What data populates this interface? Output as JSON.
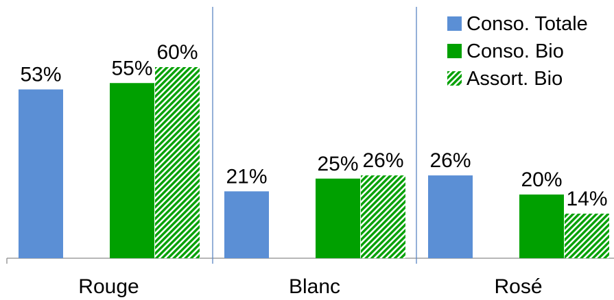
{
  "chart_data": {
    "type": "bar",
    "categories": [
      "Rouge",
      "Blanc",
      "Rosé"
    ],
    "series": [
      {
        "name": "Conso. Totale",
        "values": [
          53,
          21,
          26
        ],
        "color": "#5B8FD5",
        "pattern": "solid"
      },
      {
        "name": "Conso. Bio",
        "values": [
          55,
          25,
          20
        ],
        "color": "#00A000",
        "pattern": "solid"
      },
      {
        "name": "Assort. Bio",
        "values": [
          60,
          26,
          14
        ],
        "color": "#00A000",
        "pattern": "diagonal-hatch"
      }
    ],
    "data_labels": [
      [
        "53%",
        "55%",
        "60%"
      ],
      [
        "21%",
        "25%",
        "26%"
      ],
      [
        "26%",
        "20%",
        "14%"
      ]
    ],
    "ylim": [
      0,
      65
    ],
    "legend_position": "top-right",
    "grid": false,
    "title": "",
    "xlabel": "",
    "ylabel": ""
  }
}
